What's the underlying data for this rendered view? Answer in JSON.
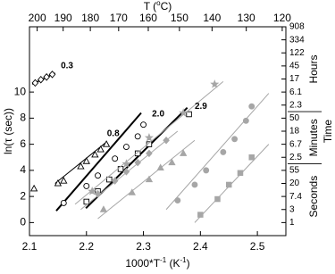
{
  "chart_data": {
    "type": "scatter",
    "x_label": [
      "1000*T",
      "-1",
      " (K",
      "-1",
      ")"
    ],
    "y_label": "ln(τ (sec))",
    "top_label": [
      "T (",
      "o",
      "C)"
    ],
    "right_label": "Time",
    "xlim": [
      2.1,
      2.55
    ],
    "xticks": [
      2.1,
      2.2,
      2.3,
      2.4,
      2.5
    ],
    "ylim": [
      -1,
      15
    ],
    "yticks": [
      0,
      2,
      4,
      6,
      8,
      10
    ],
    "top_ticks": [
      {
        "value": 2.1135,
        "label": "200"
      },
      {
        "value": 2.1591,
        "label": "190"
      },
      {
        "value": 2.2068,
        "label": "180"
      },
      {
        "value": 2.2565,
        "label": "170"
      },
      {
        "value": 2.3085,
        "label": "160"
      },
      {
        "value": 2.3632,
        "label": "150"
      },
      {
        "value": 2.4204,
        "label": "140"
      },
      {
        "value": 2.4805,
        "label": "130"
      },
      {
        "value": 2.5436,
        "label": "120"
      }
    ],
    "y2lim": [
      -1,
      15
    ],
    "y2ticks": [
      {
        "value": 0,
        "label": "1"
      },
      {
        "value": 1,
        "label": "3"
      },
      {
        "value": 2,
        "label": "7.4"
      },
      {
        "value": 3,
        "label": "20"
      },
      {
        "value": 4,
        "label": "55"
      },
      {
        "value": 5,
        "label": "2.5"
      },
      {
        "value": 6,
        "label": "6.7"
      },
      {
        "value": 7,
        "label": "18"
      },
      {
        "value": 8,
        "label": "50"
      },
      {
        "value": 9,
        "label": "2.3"
      },
      {
        "value": 10,
        "label": "6.1"
      },
      {
        "value": 11,
        "label": "17"
      },
      {
        "value": 12,
        "label": "45"
      },
      {
        "value": 13,
        "label": "122"
      },
      {
        "value": 14,
        "label": "334"
      },
      {
        "value": 15,
        "label": "908"
      }
    ],
    "time_groups": [
      {
        "label": "Seconds",
        "color": "#a6a6a6",
        "range": [
          -0.5,
          4.5
        ]
      },
      {
        "label": "Minutes",
        "color": "#000000",
        "range": [
          4.5,
          8.5
        ]
      },
      {
        "label": "Hours",
        "color": "#000000",
        "range": [
          8.5,
          15
        ]
      }
    ],
    "series": [
      {
        "marker": "diamond",
        "filled": false,
        "color": "#000000",
        "x": [
          2.11,
          2.12,
          2.13,
          2.14
        ],
        "values": [
          10.7,
          10.95,
          11.15,
          11.35
        ],
        "fit_x": [
          2.105,
          2.145
        ],
        "fit_y": [
          10.6,
          11.45
        ],
        "fit_width": 1.5
      },
      {
        "marker": "triangle",
        "filled": false,
        "color": "#000000",
        "x": [
          2.108,
          2.15,
          2.16,
          2.19,
          2.2,
          2.215,
          2.225,
          2.235
        ],
        "values": [
          2.6,
          3.0,
          3.2,
          4.3,
          4.7,
          5.2,
          5.6,
          6.0
        ],
        "fit_x": [
          2.145,
          2.236
        ],
        "fit_y": [
          3.0,
          6.2
        ],
        "fit_width": 1
      },
      {
        "marker": "circle",
        "filled": false,
        "color": "#000000",
        "x": [
          2.16,
          2.2,
          2.22,
          2.25,
          2.27,
          2.29,
          2.3
        ],
        "values": [
          1.5,
          2.8,
          3.6,
          4.9,
          5.8,
          6.6,
          7.5
        ],
        "fit_x": [
          2.147,
          2.296
        ],
        "fit_y": [
          0.9,
          8.4
        ],
        "fit_width": 2
      },
      {
        "marker": "square",
        "filled": false,
        "color": "#000000",
        "x": [
          2.2,
          2.22,
          2.24,
          2.26,
          2.29,
          2.31,
          2.38
        ],
        "values": [
          1.6,
          2.4,
          3.3,
          4.1,
          5.3,
          6.0,
          8.3
        ],
        "fit_x": [
          2.199,
          2.377
        ],
        "fit_y": [
          1.1,
          8.8
        ],
        "fit_width": 2
      },
      {
        "marker": "star",
        "filled": true,
        "color": "#a6a6a6",
        "x": [
          2.21,
          2.27,
          2.31,
          2.37,
          2.425
        ],
        "values": [
          2.4,
          4.5,
          6.5,
          8.4,
          10.6
        ],
        "fit_x": [
          2.18,
          2.44
        ],
        "fit_y": [
          1.4,
          10.8
        ],
        "fit_width": 1
      },
      {
        "marker": "diamond",
        "filled": true,
        "color": "#a6a6a6",
        "x": [
          2.22,
          2.25,
          2.27,
          2.29,
          2.31,
          2.34
        ],
        "values": [
          2.2,
          3.2,
          3.9,
          4.6,
          5.3,
          6.3
        ],
        "fit_x": [
          2.19,
          2.36
        ],
        "fit_y": [
          1.0,
          7.0
        ],
        "fit_width": 1
      },
      {
        "marker": "triangle",
        "filled": true,
        "color": "#a6a6a6",
        "x": [
          2.23,
          2.28,
          2.31,
          2.33,
          2.35,
          2.37
        ],
        "values": [
          1.0,
          2.3,
          3.3,
          4.2,
          4.6,
          5.3
        ],
        "fit_x": [
          2.22,
          2.39
        ],
        "fit_y": [
          0.3,
          6.3
        ],
        "fit_width": 1
      },
      {
        "marker": "circle",
        "filled": true,
        "color": "#a6a6a6",
        "x": [
          2.36,
          2.39,
          2.41,
          2.44,
          2.46,
          2.48,
          2.49
        ],
        "values": [
          1.7,
          2.9,
          4.0,
          5.4,
          6.4,
          7.8,
          8.9
        ],
        "fit_x": [
          2.34,
          2.52
        ],
        "fit_y": [
          1.0,
          9.9
        ],
        "fit_width": 1
      },
      {
        "marker": "square",
        "filled": true,
        "color": "#a6a6a6",
        "x": [
          2.4,
          2.43,
          2.45,
          2.47,
          2.49
        ],
        "values": [
          0.6,
          1.8,
          2.9,
          3.8,
          5.0
        ],
        "fit_x": [
          2.39,
          2.52
        ],
        "fit_y": [
          0.0,
          6.0
        ],
        "fit_width": 1
      }
    ],
    "annotations": [
      {
        "text": "0.3",
        "x": 2.155,
        "y": 12.0
      },
      {
        "text": "0.8",
        "x": 2.236,
        "y": 6.8
      },
      {
        "text": "2.0",
        "x": 2.315,
        "y": 8.3
      },
      {
        "text": "2.9",
        "x": 2.39,
        "y": 8.9
      }
    ]
  }
}
